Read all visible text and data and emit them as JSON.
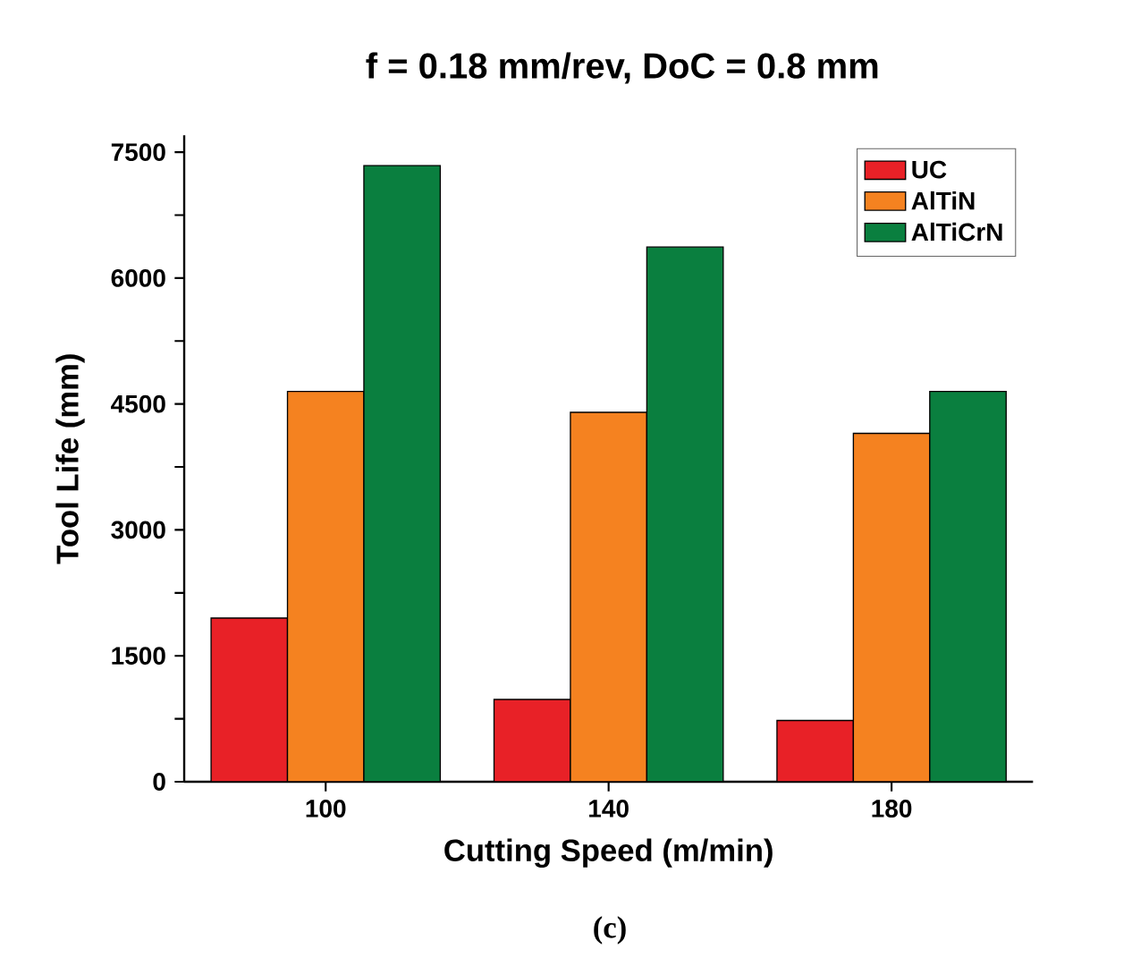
{
  "chart_data": {
    "type": "bar",
    "title": "f = 0.18 mm/rev, DoC = 0.8 mm",
    "xlabel": "Cutting Speed (m/min)",
    "ylabel": "Tool Life (mm)",
    "categories": [
      "100",
      "140",
      "180"
    ],
    "series": [
      {
        "name": "UC",
        "color": "#e82127",
        "values": [
          1950,
          980,
          730
        ]
      },
      {
        "name": "AlTiN",
        "color": "#f58220",
        "values": [
          4650,
          4400,
          4150
        ]
      },
      {
        "name": "AlTiCrN",
        "color": "#0a7f3f",
        "values": [
          7340,
          6370,
          4650
        ]
      }
    ],
    "ylim": [
      0,
      7700
    ],
    "yticks": [
      0,
      {
        "value": 750,
        "label": null
      },
      1500,
      {
        "value": 2250,
        "label": null
      },
      3000,
      {
        "value": 3750,
        "label": null
      },
      4500,
      {
        "value": 5250,
        "label": null
      },
      6000,
      {
        "value": 6750,
        "label": null
      },
      7500
    ],
    "legend": "top right",
    "grid": false,
    "annotations": [
      "(c)"
    ]
  }
}
